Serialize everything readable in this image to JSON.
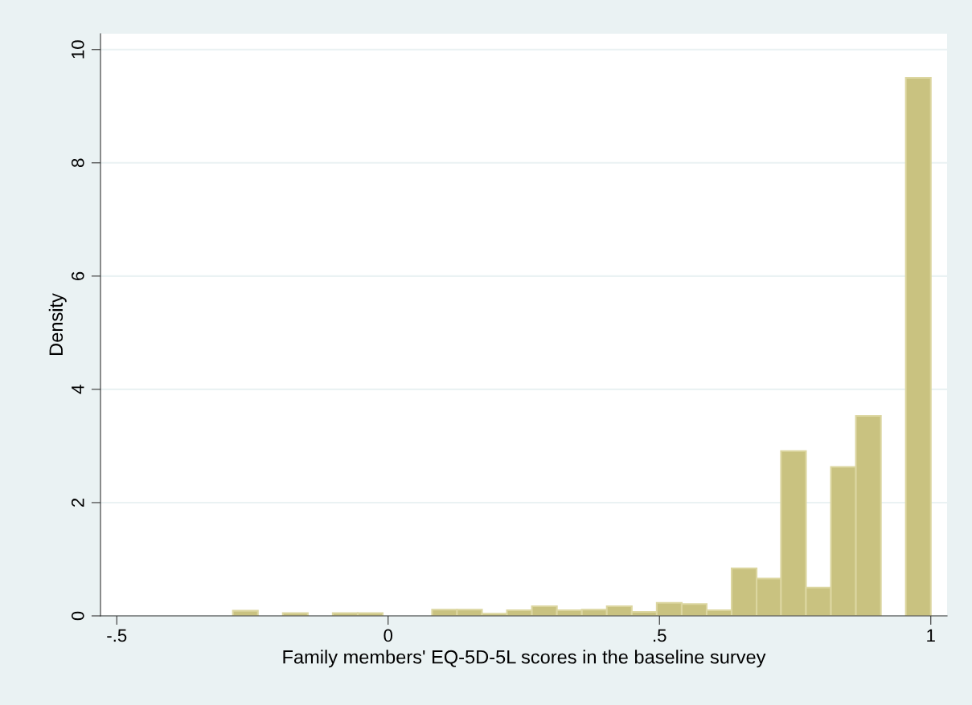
{
  "chart_data": {
    "type": "histogram",
    "xlabel": "Family members' EQ-5D-5L scores in the baseline survey",
    "ylabel": "Density",
    "bins": [
      -0.286,
      -0.24,
      -0.194,
      -0.148,
      -0.102,
      -0.056,
      -0.01,
      0.081,
      0.127,
      0.173,
      0.219,
      0.265,
      0.311,
      0.357,
      0.403,
      0.449,
      0.495,
      0.541,
      0.587,
      0.633,
      0.679,
      0.724,
      0.77,
      0.816,
      0.862,
      0.908,
      0.954,
      1.0
    ],
    "values": [
      0.09,
      0,
      0.05,
      0,
      0.05,
      0.05,
      0,
      0.11,
      0.11,
      0.04,
      0.1,
      0.17,
      0.1,
      0.11,
      0.17,
      0.07,
      0.23,
      0.21,
      0.1,
      0.84,
      0.66,
      2.91,
      0.5,
      2.63,
      3.53,
      0,
      9.5
    ],
    "color": "#c9c280",
    "xlim": [
      -0.53,
      1.03
    ],
    "ylim": [
      0,
      10.28
    ],
    "xticks": [
      {
        "value": -0.5,
        "label": "-.5"
      },
      0,
      {
        "value": 0.5,
        "label": ".5"
      },
      1
    ],
    "yticks": [
      0,
      2,
      4,
      6,
      8,
      10
    ],
    "grid": "y"
  }
}
